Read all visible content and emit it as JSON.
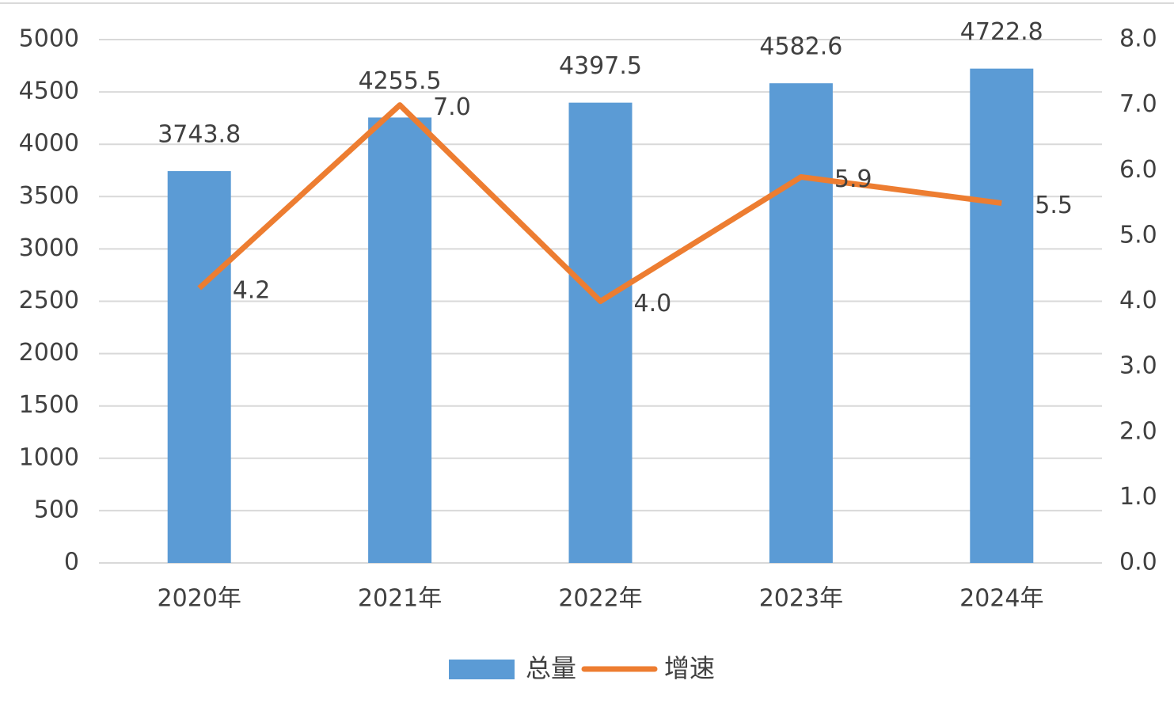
{
  "chart_data": {
    "type": "bar",
    "categories": [
      "2020年",
      "2021年",
      "2022年",
      "2023年",
      "2024年"
    ],
    "series": [
      {
        "name": "总量",
        "type": "bar",
        "color": "#5b9bd5",
        "values": [
          3743.8,
          4255.5,
          4397.5,
          4582.6,
          4722.8
        ]
      },
      {
        "name": "增速",
        "type": "line",
        "axis": "y2",
        "color": "#ed7d31",
        "values": [
          4.2,
          7.0,
          4.0,
          5.9,
          5.5
        ],
        "value_labels": [
          "4.2",
          "7.0",
          "4.0",
          "5.9",
          "5.5"
        ]
      }
    ],
    "ylim": [
      0,
      5000
    ],
    "yticks": [
      0,
      500,
      1000,
      1500,
      2000,
      2500,
      3000,
      3500,
      4000,
      4500,
      5000
    ],
    "y2lim": [
      0,
      8
    ],
    "y2ticks": [
      {
        "value": 0,
        "label": "0.0"
      },
      {
        "value": 1,
        "label": "1.0"
      },
      {
        "value": 2,
        "label": "2.0"
      },
      {
        "value": 3,
        "label": "3.0"
      },
      {
        "value": 4,
        "label": "4.0"
      },
      {
        "value": 5,
        "label": "5.0"
      },
      {
        "value": 6,
        "label": "6.0"
      },
      {
        "value": 7,
        "label": "7.0"
      },
      {
        "value": 8,
        "label": "8.0"
      }
    ],
    "grid": true,
    "legend": "bottom"
  }
}
